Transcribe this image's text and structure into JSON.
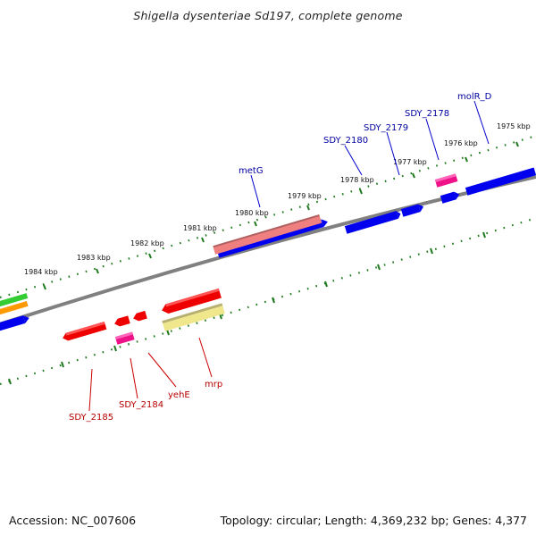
{
  "title": "Shigella dysenteriae Sd197, complete genome",
  "footer": {
    "accession": "Accession: NC_007606",
    "topology": "Topology: circular; Length: 4,369,232 bp; Genes: 4,377"
  },
  "colors": {
    "backbone": "#808080",
    "tick": "#1f7a1f",
    "forward_cds": "#0000ee",
    "reverse_cds": "#ee0000",
    "pink": "#ee1188",
    "salmon": "#f08080",
    "khaki": "#f0e68c",
    "green": "#33cc33",
    "orange": "#ff9900",
    "top_label": "#0000a0",
    "bottom_label": "#b80000"
  },
  "tick_labels": [
    {
      "id": "1975",
      "text": "1975 kbp"
    },
    {
      "id": "1976",
      "text": "1976 kbp"
    },
    {
      "id": "1977",
      "text": "1977 kbp"
    },
    {
      "id": "1978",
      "text": "1978 kbp"
    },
    {
      "id": "1979",
      "text": "1979 kbp"
    },
    {
      "id": "1980",
      "text": "1980 kbp"
    },
    {
      "id": "1981",
      "text": "1981 kbp"
    },
    {
      "id": "1982",
      "text": "1982 kbp"
    },
    {
      "id": "1983",
      "text": "1983 kbp"
    },
    {
      "id": "1984",
      "text": "1984 kbp"
    }
  ],
  "top_genes": [
    {
      "id": "molR_D",
      "label": "molR_D"
    },
    {
      "id": "SDY_2178",
      "label": "SDY_2178"
    },
    {
      "id": "SDY_2179",
      "label": "SDY_2179"
    },
    {
      "id": "SDY_2180",
      "label": "SDY_2180"
    },
    {
      "id": "metG",
      "label": "metG"
    }
  ],
  "bottom_genes": [
    {
      "id": "mrp",
      "label": "mrp"
    },
    {
      "id": "yehE",
      "label": "yehE"
    },
    {
      "id": "SDY_2184",
      "label": "SDY_2184"
    },
    {
      "id": "SDY_2185",
      "label": "SDY_2185"
    }
  ]
}
